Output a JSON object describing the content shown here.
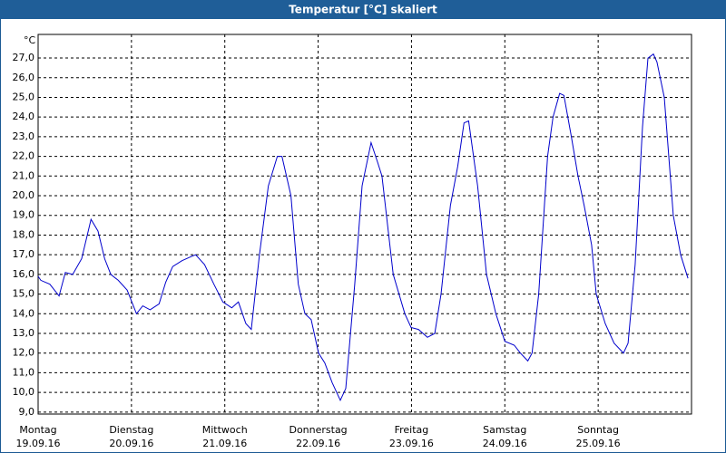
{
  "chart_data": {
    "type": "line",
    "title": "Temperatur [°C] skaliert",
    "y_unit_label": "°C",
    "color": "#0000cc",
    "grid": true,
    "xlim": [
      0,
      168
    ],
    "xticks": [
      0,
      24,
      48,
      72,
      96,
      120,
      144,
      168
    ],
    "day_labels": [
      "Montag",
      "Dienstag",
      "Mittwoch",
      "Donnerstag",
      "Freitag",
      "Samstag",
      "Sonntag"
    ],
    "date_labels": [
      "19.09.16",
      "20.09.16",
      "21.09.16",
      "22.09.16",
      "23.09.16",
      "24.09.16",
      "25.09.16"
    ],
    "ylim": [
      8.9,
      28.2
    ],
    "yticks": [
      {
        "value": 9,
        "label": "9,0"
      },
      {
        "value": 10,
        "label": "10,0"
      },
      {
        "value": 11,
        "label": "11,0"
      },
      {
        "value": 12,
        "label": "12,0"
      },
      {
        "value": 13,
        "label": "13,0"
      },
      {
        "value": 14,
        "label": "14,0"
      },
      {
        "value": 15,
        "label": "15,0"
      },
      {
        "value": 16,
        "label": "16,0"
      },
      {
        "value": 17,
        "label": "17,0"
      },
      {
        "value": 18,
        "label": "18,0"
      },
      {
        "value": 19,
        "label": "19,0"
      },
      {
        "value": 20,
        "label": "20,0"
      },
      {
        "value": 21,
        "label": "21,0"
      },
      {
        "value": 22,
        "label": "22,0"
      },
      {
        "value": 23,
        "label": "23,0"
      },
      {
        "value": 24,
        "label": "24,0"
      },
      {
        "value": 25,
        "label": "25,0"
      },
      {
        "value": 26,
        "label": "26,0"
      },
      {
        "value": 27,
        "label": "27,0"
      }
    ],
    "x": [
      0,
      0.7,
      3.0,
      5.4,
      7.0,
      8.9,
      11.2,
      13.6,
      15.4,
      17.1,
      18.7,
      20.6,
      22.9,
      25.3,
      26.9,
      28.8,
      31.1,
      32.8,
      34.6,
      37.0,
      39.3,
      40.5,
      42.8,
      45.2,
      47.5,
      49.8,
      51.5,
      53.4,
      54.8,
      56.9,
      59.2,
      61.5,
      62.7,
      65.0,
      66.9,
      68.6,
      70.2,
      72.1,
      73.7,
      75.6,
      77.7,
      79.1,
      81.4,
      83.3,
      85.6,
      87.3,
      88.4,
      91.3,
      94.3,
      95.9,
      97.8,
      100.1,
      102.0,
      103.6,
      106.0,
      107.9,
      109.5,
      110.7,
      113.0,
      115.3,
      117.7,
      120.0,
      122.4,
      124.0,
      125.9,
      127.0,
      128.7,
      131.0,
      132.4,
      134.1,
      135.2,
      137.1,
      138.8,
      140.4,
      142.3,
      143.5,
      145.8,
      148.1,
      150.5,
      151.7,
      153.5,
      155.4,
      156.8,
      158.2,
      159.1,
      161.0,
      163.3,
      165.2,
      167.1
    ],
    "values": [
      15.9,
      15.7,
      15.5,
      14.9,
      16.1,
      16.0,
      16.8,
      18.8,
      18.2,
      16.8,
      16.0,
      15.7,
      15.2,
      14.0,
      14.4,
      14.2,
      14.5,
      15.6,
      16.4,
      16.7,
      16.9,
      17.0,
      16.5,
      15.5,
      14.6,
      14.3,
      14.6,
      13.5,
      13.2,
      17.0,
      20.5,
      22.0,
      22.0,
      20.0,
      15.5,
      14.0,
      13.7,
      12.0,
      11.5,
      10.5,
      9.6,
      10.2,
      15.5,
      20.5,
      22.7,
      21.7,
      21.0,
      16.0,
      14.0,
      13.3,
      13.2,
      12.8,
      13.0,
      15.0,
      19.5,
      21.5,
      23.7,
      23.8,
      20.5,
      16.0,
      14.0,
      12.6,
      12.4,
      12.0,
      11.6,
      12.0,
      15.0,
      22.0,
      24.0,
      25.2,
      25.1,
      23.0,
      21.0,
      19.5,
      17.5,
      15.0,
      13.5,
      12.5,
      12.0,
      12.5,
      16.5,
      23.5,
      27.0,
      27.2,
      26.8,
      25.0,
      19.0,
      17.0,
      15.8
    ]
  }
}
